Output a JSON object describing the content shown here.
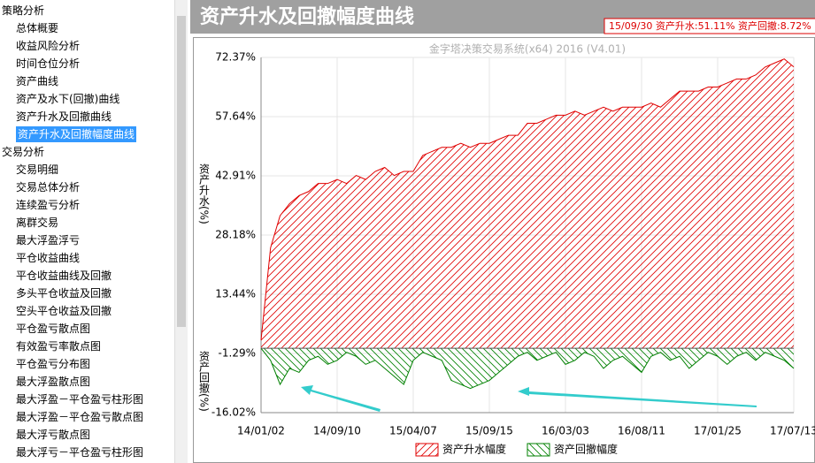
{
  "tree": {
    "selected": [
      0,
      6
    ],
    "groups": [
      {
        "label": "策略分析",
        "items": [
          "总体概要",
          "收益风险分析",
          "时间仓位分析",
          "资产曲线",
          "资产及水下(回撤)曲线",
          "资产升水及回撤曲线",
          "资产升水及回撤幅度曲线"
        ]
      },
      {
        "label": "交易分析",
        "items": [
          "交易明细",
          "交易总体分析",
          "连续盈亏分析",
          "离群交易",
          "最大浮盈浮亏",
          "平仓收益曲线",
          "平仓收益曲线及回撤",
          "多头平仓收益及回撤",
          "空头平仓收益及回撤",
          "平仓盈亏散点图",
          "有效盈亏率散点图",
          "平仓盈亏分布图",
          "最大浮盈散点图",
          "最大浮盈－平仓盈亏柱形图",
          "最大浮盈－平仓盈亏散点图",
          "最大浮亏散点图",
          "最大浮亏－平仓盈亏柱形图"
        ]
      }
    ]
  },
  "header": {
    "title": "资产升水及回撤幅度曲线",
    "info": "15/09/30  资产升水:51.11%  资产回撤:8.72%"
  },
  "chart_data": {
    "type": "area",
    "watermark": "金字塔决策交易系统(x64) 2016 (V4.01)",
    "y_axis_labels": [
      "资产升水(%)",
      "资产回撤(%)"
    ],
    "categories": [
      "14/01/02",
      null,
      null,
      null,
      null,
      null,
      null,
      null,
      "14/09/10",
      null,
      null,
      null,
      null,
      null,
      null,
      null,
      "15/04/07",
      null,
      null,
      null,
      null,
      null,
      null,
      null,
      "15/09/15",
      null,
      null,
      null,
      null,
      null,
      null,
      null,
      "16/03/03",
      null,
      null,
      null,
      null,
      null,
      null,
      null,
      "16/08/11",
      null,
      null,
      null,
      null,
      null,
      null,
      null,
      "17/01/25",
      null,
      null,
      null,
      null,
      null,
      null,
      null,
      "17/07/13"
    ],
    "series": [
      {
        "name": "资产升水幅度",
        "color": "#e00000",
        "hatch": "up",
        "values": [
          2,
          25,
          33,
          36,
          38,
          39,
          41,
          41,
          42,
          41,
          43,
          42,
          44,
          45,
          43,
          44,
          44,
          48,
          49,
          50,
          50,
          51,
          50,
          51,
          51,
          52,
          53,
          53,
          56,
          56,
          57,
          58,
          58,
          59,
          58,
          59,
          60,
          59,
          60,
          60,
          60,
          61,
          60,
          62,
          64,
          64,
          64,
          65,
          65,
          66,
          67,
          67,
          68,
          70,
          71,
          72,
          70
        ]
      },
      {
        "name": "资产回撤幅度",
        "color": "#008000",
        "hatch": "down",
        "values": [
          0,
          -3,
          -9,
          -5,
          -6,
          -3,
          -2,
          -4,
          -3,
          -1,
          -2,
          -4,
          -3,
          -5,
          -7,
          -9,
          -3,
          -1,
          -2,
          -3,
          -8,
          -9,
          -10,
          -9,
          -8,
          -6,
          -4,
          -2,
          -1,
          -3,
          -2,
          -1,
          -4,
          -3,
          -1,
          -2,
          -5,
          -3,
          -2,
          -4,
          -6,
          -2,
          -1,
          -3,
          -2,
          -5,
          -3,
          -1,
          -2,
          -4,
          -2,
          -1,
          -3,
          -1,
          -2,
          -3,
          -5
        ]
      }
    ],
    "ylim": [
      -16.02,
      72.37
    ],
    "yticks": [
      {
        "value": 72.37,
        "label": "72.37%"
      },
      {
        "value": 57.64,
        "label": "57.64%"
      },
      {
        "value": 42.91,
        "label": "42.91%"
      },
      {
        "value": 28.18,
        "label": "28.18%"
      },
      {
        "value": 13.44,
        "label": "13.44%"
      },
      {
        "value": -1.29,
        "label": "-1.29%"
      },
      {
        "value": -16.02,
        "label": "-16.02%"
      }
    ],
    "grid": true
  }
}
